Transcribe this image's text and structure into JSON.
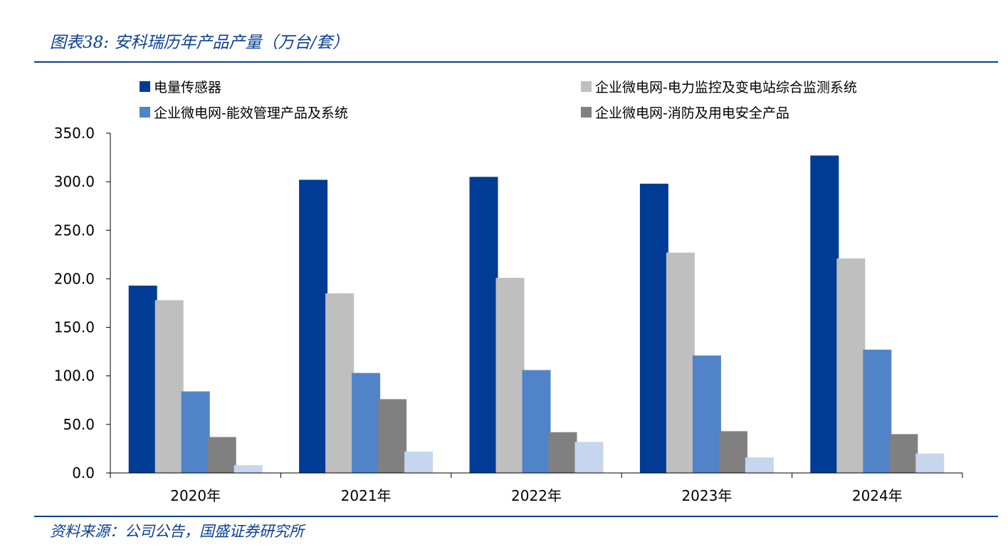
{
  "header": {
    "title": "图表38:  安科瑞历年产品产量（万台/套）"
  },
  "footer": {
    "source": "资料来源：公司公告，国盛证券研究所"
  },
  "chart_data": {
    "type": "bar",
    "title": "图表38:  安科瑞历年产品产量（万台/套）",
    "xlabel": "",
    "ylabel": "",
    "categories": [
      "2020年",
      "2021年",
      "2022年",
      "2023年",
      "2024年"
    ],
    "ylim": [
      0,
      350
    ],
    "yticks": [
      "0.0",
      "50.0",
      "100.0",
      "150.0",
      "200.0",
      "250.0",
      "300.0",
      "350.0"
    ],
    "grid": false,
    "legend_position": "top",
    "series": [
      {
        "name": "电量传感器",
        "color": "#003c96",
        "values": [
          193,
          302,
          305,
          298,
          327
        ]
      },
      {
        "name": "企业微电网-电力监控及变电站综合监测系统",
        "color": "#bfbfbf",
        "values": [
          178,
          185,
          201,
          227,
          221
        ]
      },
      {
        "name": "企业微电网-能效管理产品及系统",
        "color": "#5183c8",
        "values": [
          84,
          103,
          106,
          121,
          127
        ]
      },
      {
        "name": "企业微电网-消防及用电安全产品",
        "color": "#808080",
        "values": [
          37,
          76,
          42,
          43,
          40
        ]
      },
      {
        "name": "",
        "color": "#c5d6ee",
        "values": [
          8,
          22,
          32,
          16,
          20
        ]
      }
    ]
  }
}
